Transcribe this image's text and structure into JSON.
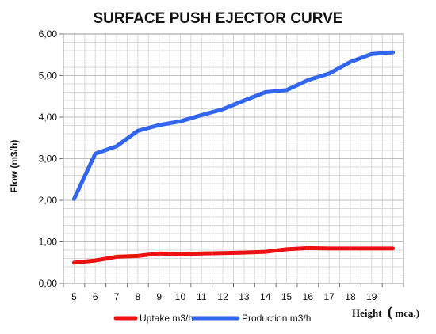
{
  "chart_data": {
    "type": "line",
    "title": "SURFACE PUSH EJECTOR CURVE",
    "ylabel": "Flow (m3/h)",
    "xlabel": "Height",
    "xlabel_unit": "mca.)",
    "xlabel_paren": "(",
    "x": [
      5,
      6,
      7,
      8,
      9,
      10,
      11,
      12,
      13,
      14,
      15,
      16,
      17,
      18,
      19,
      20
    ],
    "x_tick_labels": [
      "5",
      "6",
      "7",
      "8",
      "9",
      "10",
      "11",
      "12",
      "13",
      "14",
      "15",
      "16",
      "17",
      "18",
      "19"
    ],
    "y_ticks": [
      0,
      1,
      2,
      3,
      4,
      5,
      6
    ],
    "y_tick_labels": [
      "0,00",
      "1,00",
      "2,00",
      "3,00",
      "4,00",
      "5,00",
      "6,00"
    ],
    "ylim": [
      0,
      6
    ],
    "grid": true,
    "legend_position": "bottom",
    "series": [
      {
        "name": "Uptake m3/h",
        "color": "#ee1111",
        "values": [
          0.5,
          0.55,
          0.64,
          0.66,
          0.72,
          0.7,
          0.72,
          0.73,
          0.74,
          0.76,
          0.82,
          0.85,
          0.84,
          0.84,
          0.84,
          0.84
        ]
      },
      {
        "name": "Production m3/h",
        "color": "#3366ee",
        "values": [
          2.03,
          3.12,
          3.3,
          3.67,
          3.81,
          3.9,
          4.05,
          4.19,
          4.4,
          4.6,
          4.65,
          4.89,
          5.05,
          5.33,
          5.52,
          5.56
        ]
      }
    ]
  }
}
